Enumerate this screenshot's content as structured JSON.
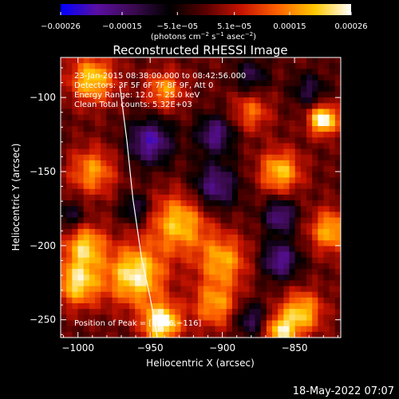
{
  "chart_data": {
    "type": "heatmap",
    "title": "Reconstructed RHESSI Image",
    "xlabel": "Heliocentric X (arcsec)",
    "ylabel": "Heliocentric Y (arcsec)",
    "xlim": [
      -1012,
      -818
    ],
    "ylim": [
      -262,
      -73
    ],
    "x_ticks": [
      -1000,
      -950,
      -900,
      -850
    ],
    "x_tick_labels": [
      "−1000",
      "−950",
      "−900",
      "−850"
    ],
    "y_ticks": [
      -100,
      -150,
      -200,
      -250
    ],
    "y_tick_labels": [
      "−100",
      "−150",
      "−200",
      "−250"
    ],
    "colorbar": {
      "min": -0.00026,
      "max": 0.00026,
      "ticks": [
        -0.00026,
        -0.00015,
        -5.1e-05,
        5.1e-05,
        0.00015,
        0.00026
      ],
      "tick_labels": [
        "−0.00026",
        "−0.00015",
        "−5.1e−05",
        "5.1e−05",
        "0.00015",
        "0.00026"
      ],
      "units_line": [
        "(photons cm",
        "−2",
        " s",
        "−1",
        " asec",
        "−2",
        ")"
      ]
    },
    "annotations": [
      "23-Jan-2015 08:38:00.000 to 08:42:56.000",
      "Detectors: 3F 5F 6F 7F 8F 9F, Att 0",
      "Energy Range: 12.0 − 25.0 keV",
      "Clean    Total counts: 5.32E+03"
    ],
    "peak_label": "Position of Peak = [−836,−116]",
    "peak": {
      "x": -836,
      "y": -116
    },
    "limb_curve": [
      [
        -971,
        -92
      ],
      [
        -966,
        -130
      ],
      [
        -962,
        -168
      ],
      [
        -956,
        -208
      ],
      [
        -950,
        -235
      ],
      [
        -945,
        -262
      ]
    ],
    "image_grid": {
      "nx": 49,
      "ny": 49,
      "blobs": [
        {
          "x": -960,
          "y": -220,
          "a": 1.05,
          "s": 14
        },
        {
          "x": -942,
          "y": -252,
          "a": 1.2,
          "s": 9
        },
        {
          "x": -990,
          "y": -88,
          "a": 0.9,
          "s": 11
        },
        {
          "x": -1000,
          "y": -225,
          "a": 0.95,
          "s": 11
        },
        {
          "x": -995,
          "y": -200,
          "a": 0.85,
          "s": 10
        },
        {
          "x": -930,
          "y": -185,
          "a": 0.85,
          "s": 14
        },
        {
          "x": -900,
          "y": -210,
          "a": 0.75,
          "s": 12
        },
        {
          "x": -905,
          "y": -240,
          "a": 0.7,
          "s": 11
        },
        {
          "x": -860,
          "y": -150,
          "a": 0.85,
          "s": 10
        },
        {
          "x": -830,
          "y": -115,
          "a": 1.2,
          "s": 7
        },
        {
          "x": -825,
          "y": -190,
          "a": 0.8,
          "s": 10
        },
        {
          "x": -845,
          "y": -245,
          "a": 0.85,
          "s": 10
        },
        {
          "x": -860,
          "y": -258,
          "a": 0.9,
          "s": 8
        },
        {
          "x": -990,
          "y": -150,
          "a": 0.7,
          "s": 11
        },
        {
          "x": -940,
          "y": -95,
          "a": 0.7,
          "s": 9
        },
        {
          "x": -880,
          "y": -110,
          "a": 0.55,
          "s": 9
        },
        {
          "x": -950,
          "y": -130,
          "a": -0.85,
          "s": 11
        },
        {
          "x": -905,
          "y": -160,
          "a": -0.75,
          "s": 11
        },
        {
          "x": -905,
          "y": -125,
          "a": -0.75,
          "s": 9
        },
        {
          "x": -860,
          "y": -210,
          "a": -0.8,
          "s": 9
        },
        {
          "x": -860,
          "y": -180,
          "a": -0.75,
          "s": 8
        },
        {
          "x": -880,
          "y": -250,
          "a": -0.6,
          "s": 8
        },
        {
          "x": -1005,
          "y": -180,
          "a": -0.45,
          "s": 7
        },
        {
          "x": -960,
          "y": -175,
          "a": -0.55,
          "s": 7
        },
        {
          "x": -840,
          "y": -95,
          "a": -0.5,
          "s": 8
        },
        {
          "x": -880,
          "y": -85,
          "a": -0.5,
          "s": 8
        }
      ]
    }
  },
  "footer": {
    "timestamp": "18-May-2022 07:07"
  },
  "colors": {
    "background": "#000000",
    "foreground": "#ffffff",
    "colormap": [
      "#0000ff",
      "#5a0fa0",
      "#3c0a50",
      "#000000",
      "#5a0000",
      "#c81400",
      "#ff6400",
      "#ffc800",
      "#ffffff"
    ]
  }
}
